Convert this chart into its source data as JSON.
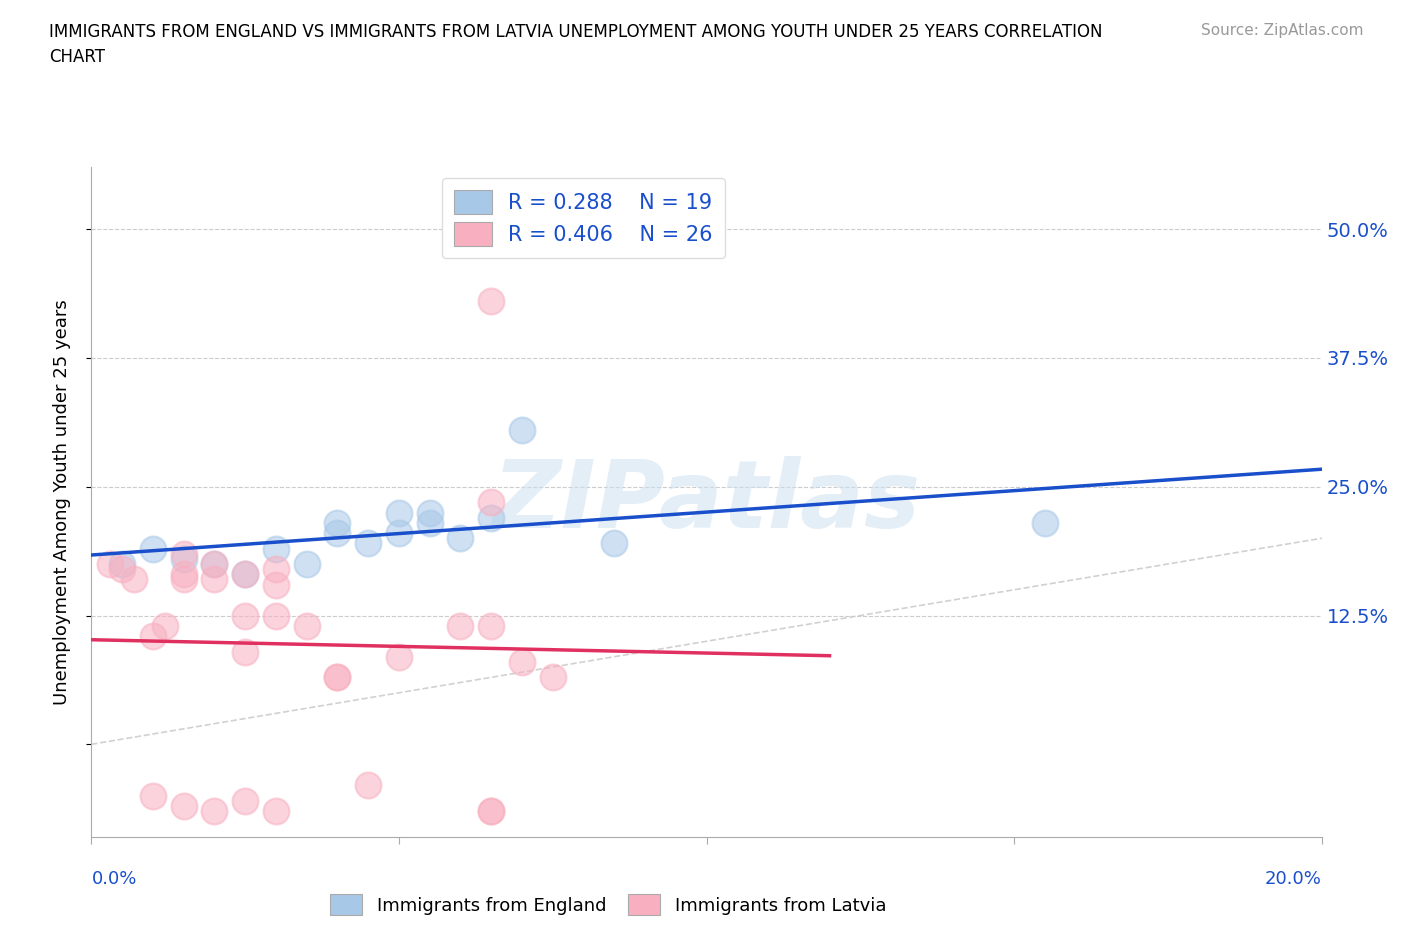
{
  "title_line1": "IMMIGRANTS FROM ENGLAND VS IMMIGRANTS FROM LATVIA UNEMPLOYMENT AMONG YOUTH UNDER 25 YEARS CORRELATION",
  "title_line2": "CHART",
  "source": "Source: ZipAtlas.com",
  "xlabel_bottom_left": "0.0%",
  "xlabel_bottom_right": "20.0%",
  "ylabel": "Unemployment Among Youth under 25 years",
  "y_ticks": [
    0.0,
    0.125,
    0.25,
    0.375,
    0.5
  ],
  "y_tick_labels": [
    "",
    "12.5%",
    "25.0%",
    "37.5%",
    "50.0%"
  ],
  "x_range": [
    0.0,
    0.2
  ],
  "y_range": [
    -0.09,
    0.56
  ],
  "england_R": 0.288,
  "england_N": 19,
  "latvia_R": 0.406,
  "latvia_N": 26,
  "england_color": "#a8c8e8",
  "latvia_color": "#f8b0c0",
  "england_line_color": "#1a4fcc",
  "latvia_line_color": "#e03060",
  "diagonal_color": "#cccccc",
  "england_scatter_x": [
    0.005,
    0.01,
    0.015,
    0.02,
    0.025,
    0.03,
    0.035,
    0.04,
    0.04,
    0.045,
    0.05,
    0.05,
    0.055,
    0.055,
    0.06,
    0.065,
    0.07,
    0.085,
    0.155
  ],
  "england_scatter_y": [
    0.175,
    0.19,
    0.18,
    0.175,
    0.165,
    0.19,
    0.175,
    0.205,
    0.215,
    0.195,
    0.205,
    0.225,
    0.215,
    0.225,
    0.2,
    0.22,
    0.305,
    0.195,
    0.215
  ],
  "latvia_scatter_x": [
    0.003,
    0.005,
    0.007,
    0.01,
    0.012,
    0.015,
    0.015,
    0.015,
    0.02,
    0.02,
    0.025,
    0.025,
    0.025,
    0.03,
    0.03,
    0.03,
    0.035,
    0.04,
    0.04,
    0.05,
    0.06,
    0.065,
    0.065,
    0.065,
    0.07,
    0.075
  ],
  "latvia_scatter_y": [
    0.175,
    0.17,
    0.16,
    0.105,
    0.115,
    0.16,
    0.165,
    0.185,
    0.16,
    0.175,
    0.09,
    0.125,
    0.165,
    0.125,
    0.155,
    0.17,
    0.115,
    0.065,
    0.065,
    0.085,
    0.115,
    0.115,
    0.235,
    0.43,
    0.08,
    0.065
  ],
  "latvia_extra_x": [
    0.01,
    0.015,
    0.02,
    0.025,
    0.03,
    0.045,
    0.065,
    0.065
  ],
  "latvia_extra_y": [
    -0.05,
    -0.06,
    -0.065,
    -0.055,
    -0.065,
    -0.04,
    -0.065,
    -0.065
  ],
  "watermark": "ZIPatlas",
  "legend_box_color_england": "#a8c8e8",
  "legend_box_color_latvia": "#f8b0c0",
  "legend_text_color": "#1a4fcc",
  "eng_line_x0": 0.0,
  "eng_line_x1": 0.2,
  "lat_line_x0": 0.0,
  "lat_line_x1": 0.12
}
